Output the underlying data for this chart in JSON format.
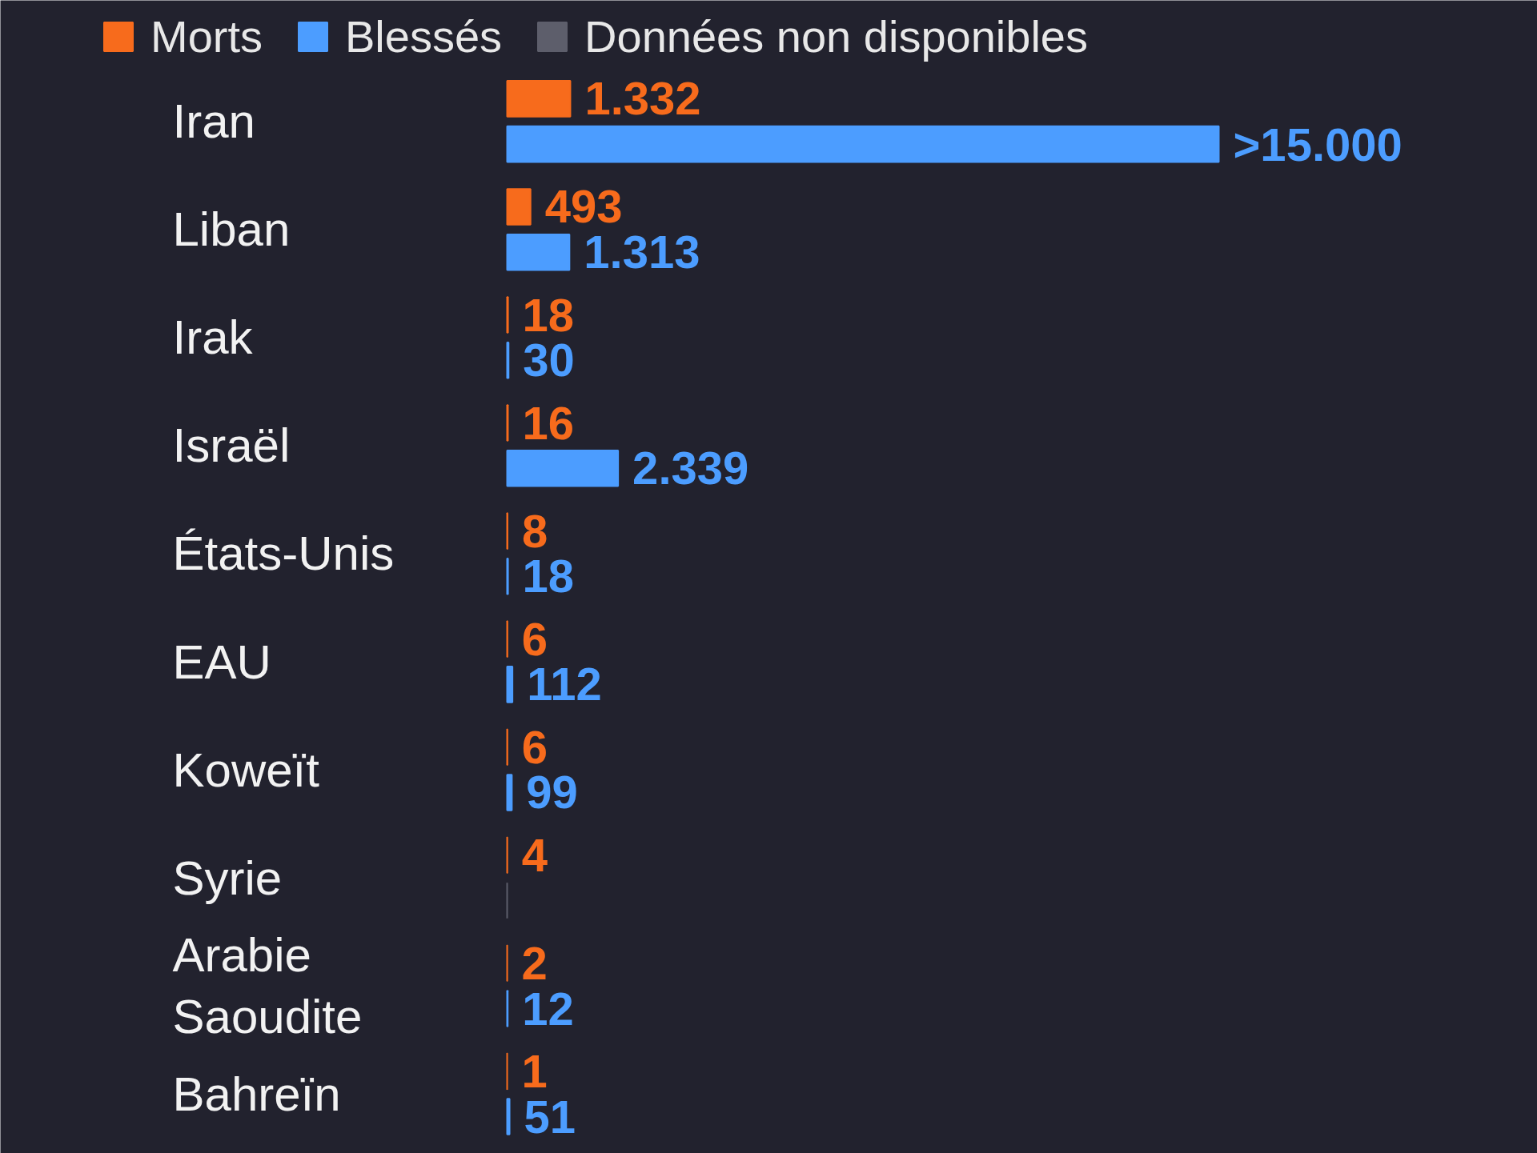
{
  "chart_data": {
    "type": "bar",
    "orientation": "horizontal",
    "tick_labels": "y",
    "legend": "top left",
    "categories": [
      "Iran",
      "Liban",
      "Irak",
      "Israël",
      "États-Unis",
      "EAU",
      "Koweït",
      "Syrie",
      "Arabie Saoudite",
      "Bahreïn"
    ],
    "series": [
      {
        "name": "Morts",
        "color": "#f76b1c",
        "values": [
          1332,
          493,
          18,
          16,
          8,
          6,
          6,
          4,
          2,
          1
        ],
        "value_labels": [
          "1.332",
          "493",
          "18",
          "16",
          "8",
          "6",
          "6",
          "4",
          "2",
          "1"
        ]
      },
      {
        "name": "Blessés",
        "color": "#4c9dff",
        "values": [
          15000,
          1313,
          30,
          2339,
          18,
          112,
          99,
          null,
          12,
          51
        ],
        "value_labels": [
          ">15.000",
          "1.313",
          "30",
          "2.339",
          "18",
          "112",
          "99",
          null,
          "12",
          "51"
        ]
      },
      {
        "name": "Données non disponibles",
        "color": "#5d5e6b",
        "values": [
          null,
          null,
          null,
          null,
          null,
          null,
          null,
          0,
          null,
          null
        ]
      }
    ]
  }
}
